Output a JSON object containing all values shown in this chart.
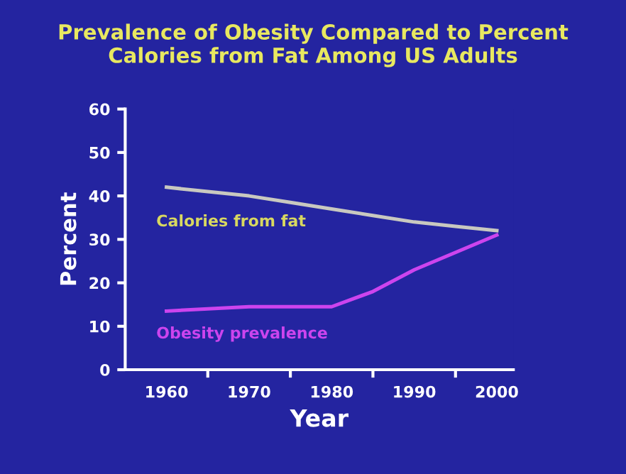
{
  "chart_data": {
    "type": "line",
    "title": "Prevalence of Obesity Compared to Percent\nCalories from Fat Among US Adults",
    "xlabel": "Year",
    "ylabel": "Percent",
    "xlim": [
      1955,
      2002
    ],
    "ylim": [
      0,
      60
    ],
    "yticks": [
      0,
      10,
      20,
      30,
      40,
      50,
      60
    ],
    "xticks": [
      1960,
      {
        "value": 1965,
        "label": null
      },
      1970,
      {
        "value": 1975,
        "label": null
      },
      1980,
      {
        "value": 1985,
        "label": null
      },
      1990,
      {
        "value": 1995,
        "label": null
      },
      2000
    ],
    "grid": false,
    "marker": "none",
    "line_style": "solid",
    "series": [
      {
        "name": "Calories from fat",
        "color": "#c8c8c0",
        "x": [
          1960,
          1965,
          1970,
          1975,
          1980,
          1985,
          1990,
          1995,
          2000
        ],
        "values": [
          42,
          41,
          40,
          38.5,
          37,
          35.5,
          34,
          33,
          32
        ]
      },
      {
        "name": "Obesity prevalence",
        "color": "#cc44ee",
        "x": [
          1960,
          1965,
          1970,
          1975,
          1980,
          1985,
          1990,
          1995,
          2000
        ],
        "values": [
          13.5,
          14,
          14.5,
          14.5,
          14.5,
          18,
          23,
          27,
          31
        ]
      }
    ]
  }
}
